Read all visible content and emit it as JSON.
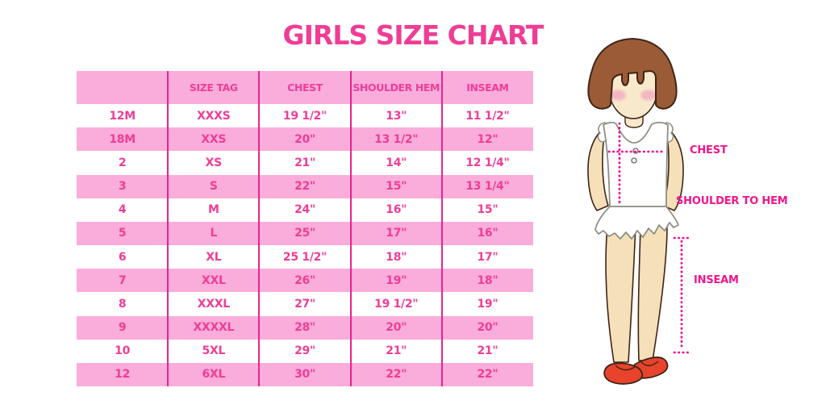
{
  "title": "GIRLS SIZE CHART",
  "chart_data": {
    "type": "table",
    "title": "GIRLS SIZE CHART",
    "columns": [
      "",
      "SIZE TAG",
      "CHEST",
      "SHOULDER HEM",
      "INSEAM"
    ],
    "rows": [
      [
        "12M",
        "XXXS",
        "19 1/2\"",
        "13\"",
        "11 1/2\""
      ],
      [
        "18M",
        "XXS",
        "20\"",
        "13 1/2\"",
        "12\""
      ],
      [
        "2",
        "XS",
        "21\"",
        "14\"",
        "12 1/4\""
      ],
      [
        "3",
        "S",
        "22\"",
        "15\"",
        "13 1/4\""
      ],
      [
        "4",
        "M",
        "24\"",
        "16\"",
        "15\""
      ],
      [
        "5",
        "L",
        "25\"",
        "17\"",
        "16\""
      ],
      [
        "6",
        "XL",
        "25 1/2\"",
        "18\"",
        "17\""
      ],
      [
        "7",
        "XXL",
        "26\"",
        "19\"",
        "18\""
      ],
      [
        "8",
        "XXXL",
        "27\"",
        "19 1/2\"",
        "19\""
      ],
      [
        "9",
        "XXXXL",
        "28\"",
        "20\"",
        "20\""
      ],
      [
        "10",
        "5XL",
        "29\"",
        "21\"",
        "21\""
      ],
      [
        "12",
        "6XL",
        "30\"",
        "22\"",
        "22\""
      ]
    ],
    "row_striping": [
      "white",
      "pink"
    ],
    "legend_position": "none",
    "grid": "vertical-dividers-only"
  },
  "diagram": {
    "labels": {
      "chest": "CHEST",
      "shoulder_hem": "SHOULDER TO HEM",
      "inseam": "INSEAM"
    }
  },
  "colors": {
    "text_pink": "#EF3D96",
    "light_pink": "#FAADDB",
    "line_pink": "#E6258A",
    "label_pink": "#F0158F",
    "hair_brown": "#9A5B36",
    "outline_dark": "#3F2417",
    "cloth_outline": "#8F8F84",
    "skin": "#F9E9CC",
    "skin_leg": "#F5E0BA",
    "blush": "#F2AFC0",
    "shoe_red": "#E8432C"
  }
}
